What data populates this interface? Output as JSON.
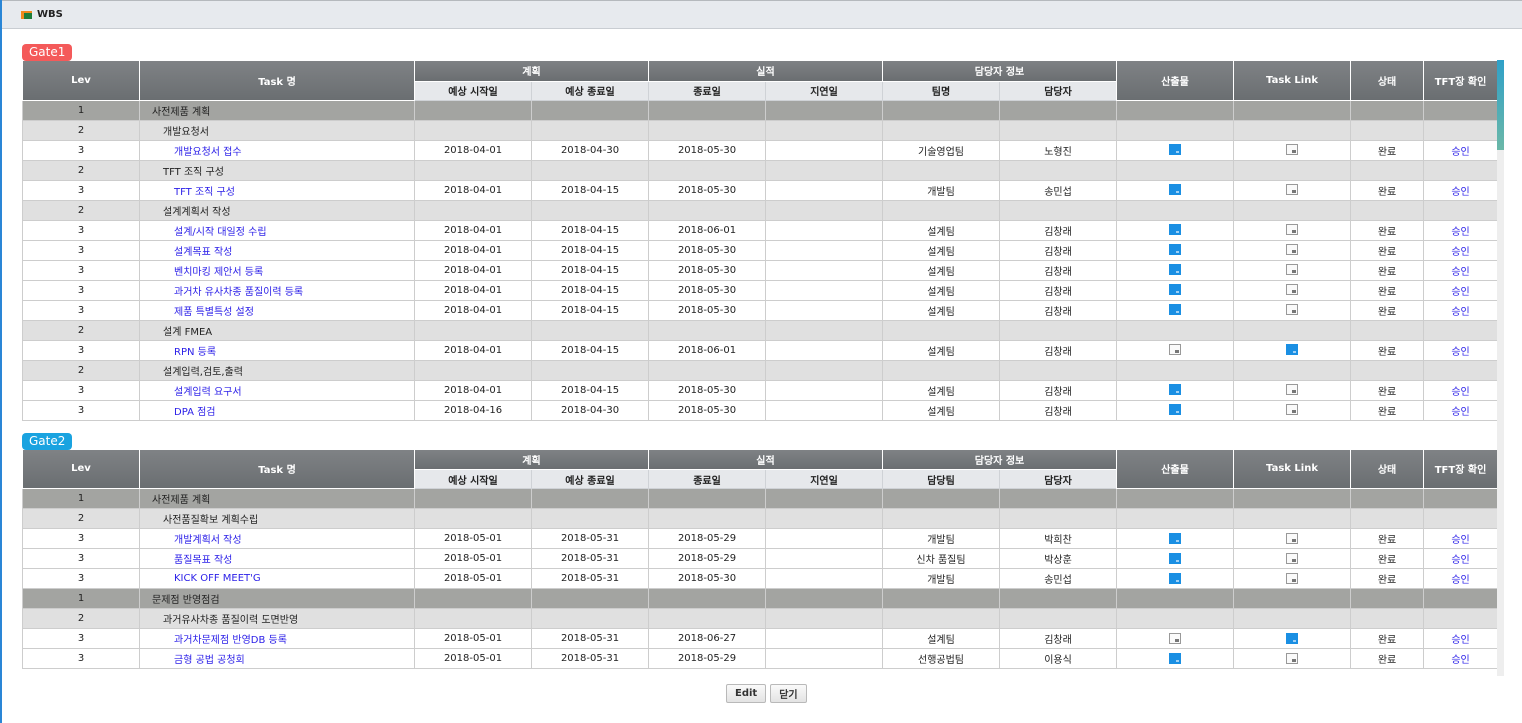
{
  "window": {
    "title": "WBS"
  },
  "headers": {
    "lev": "Lev",
    "task": "Task 명",
    "plan": "계획",
    "actual": "실적",
    "owner": "담당자 정보",
    "output": "산출물",
    "task_link": "Task Link",
    "status": "상태",
    "tft": "TFT장 확인",
    "plan_start": "예상 시작일",
    "plan_end": "예상 종료일",
    "end": "종료일",
    "delay": "지연일",
    "owner_person": "담당자"
  },
  "colors": {
    "gate1": "#f45a5a",
    "gate2": "#1aa3e0",
    "folder_filled": "#1a8fe3",
    "link": "#2a1ee8"
  },
  "gates": [
    {
      "label": "Gate1",
      "team_header": "팀명",
      "rows": [
        {
          "lev": "1",
          "task": "사전제품 계획"
        },
        {
          "lev": "2",
          "task": "개발요청서"
        },
        {
          "lev": "3",
          "task": "개발요청서 접수",
          "ps": "2018-04-01",
          "pe": "2018-04-30",
          "end": "2018-05-30",
          "delay": "",
          "team": "기술영업팀",
          "person": "노형진",
          "output": "filled",
          "link": "empty",
          "status": "완료",
          "tft": "승인"
        },
        {
          "lev": "2",
          "task": "TFT 조직 구성"
        },
        {
          "lev": "3",
          "task": "TFT 조직 구성",
          "ps": "2018-04-01",
          "pe": "2018-04-15",
          "end": "2018-05-30",
          "delay": "",
          "team": "개발팀",
          "person": "송민섭",
          "output": "filled",
          "link": "empty",
          "status": "완료",
          "tft": "승인"
        },
        {
          "lev": "2",
          "task": "설계계획서 작성"
        },
        {
          "lev": "3",
          "task": "설계/시작 대일정 수립",
          "ps": "2018-04-01",
          "pe": "2018-04-15",
          "end": "2018-06-01",
          "delay": "",
          "team": "설계팀",
          "person": "김창래",
          "output": "filled",
          "link": "empty",
          "status": "완료",
          "tft": "승인"
        },
        {
          "lev": "3",
          "task": "설계목표 작성",
          "ps": "2018-04-01",
          "pe": "2018-04-15",
          "end": "2018-05-30",
          "delay": "",
          "team": "설계팀",
          "person": "김창래",
          "output": "filled",
          "link": "empty",
          "status": "완료",
          "tft": "승인"
        },
        {
          "lev": "3",
          "task": "벤치마킹 제안서 등록",
          "ps": "2018-04-01",
          "pe": "2018-04-15",
          "end": "2018-05-30",
          "delay": "",
          "team": "설계팀",
          "person": "김창래",
          "output": "filled",
          "link": "empty",
          "status": "완료",
          "tft": "승인"
        },
        {
          "lev": "3",
          "task": "과거차 유사차종 품질이력 등록",
          "ps": "2018-04-01",
          "pe": "2018-04-15",
          "end": "2018-05-30",
          "delay": "",
          "team": "설계팀",
          "person": "김창래",
          "output": "filled",
          "link": "empty",
          "status": "완료",
          "tft": "승인"
        },
        {
          "lev": "3",
          "task": "제품 특별특성 설정",
          "ps": "2018-04-01",
          "pe": "2018-04-15",
          "end": "2018-05-30",
          "delay": "",
          "team": "설계팀",
          "person": "김창래",
          "output": "filled",
          "link": "empty",
          "status": "완료",
          "tft": "승인"
        },
        {
          "lev": "2",
          "task": "설계 FMEA"
        },
        {
          "lev": "3",
          "task": "RPN 등록",
          "ps": "2018-04-01",
          "pe": "2018-04-15",
          "end": "2018-06-01",
          "delay": "",
          "team": "설계팀",
          "person": "김창래",
          "output": "empty",
          "link": "filled",
          "status": "완료",
          "tft": "승인"
        },
        {
          "lev": "2",
          "task": "설계입력,검토,출력"
        },
        {
          "lev": "3",
          "task": "설계입력 요구서",
          "ps": "2018-04-01",
          "pe": "2018-04-15",
          "end": "2018-05-30",
          "delay": "",
          "team": "설계팀",
          "person": "김창래",
          "output": "filled",
          "link": "empty",
          "status": "완료",
          "tft": "승인"
        },
        {
          "lev": "3",
          "task": "DPA 점검",
          "ps": "2018-04-16",
          "pe": "2018-04-30",
          "end": "2018-05-30",
          "delay": "",
          "team": "설계팀",
          "person": "김창래",
          "output": "filled",
          "link": "empty",
          "status": "완료",
          "tft": "승인"
        }
      ]
    },
    {
      "label": "Gate2",
      "team_header": "담당팀",
      "rows": [
        {
          "lev": "1",
          "task": "사전제품 계획"
        },
        {
          "lev": "2",
          "task": "사전품질확보 계획수립"
        },
        {
          "lev": "3",
          "task": "개발계획서 작성",
          "ps": "2018-05-01",
          "pe": "2018-05-31",
          "end": "2018-05-29",
          "delay": "",
          "team": "개발팀",
          "person": "박희찬",
          "output": "filled",
          "link": "empty",
          "status": "완료",
          "tft": "승인"
        },
        {
          "lev": "3",
          "task": "품질목표 작성",
          "ps": "2018-05-01",
          "pe": "2018-05-31",
          "end": "2018-05-29",
          "delay": "",
          "team": "신차 품질팀",
          "person": "박상훈",
          "output": "filled",
          "link": "empty",
          "status": "완료",
          "tft": "승인"
        },
        {
          "lev": "3",
          "task": "KICK OFF MEET'G",
          "ps": "2018-05-01",
          "pe": "2018-05-31",
          "end": "2018-05-30",
          "delay": "",
          "team": "개발팀",
          "person": "송민섭",
          "output": "filled",
          "link": "empty",
          "status": "완료",
          "tft": "승인"
        },
        {
          "lev": "1",
          "task": "문제점 반영점검"
        },
        {
          "lev": "2",
          "task": "과거유사차종 품질이력 도면반영"
        },
        {
          "lev": "3",
          "task": "과거차문제점 반영DB 등록",
          "ps": "2018-05-01",
          "pe": "2018-05-31",
          "end": "2018-06-27",
          "delay": "",
          "team": "설계팀",
          "person": "김창래",
          "output": "empty",
          "link": "filled",
          "status": "완료",
          "tft": "승인"
        },
        {
          "lev": "3",
          "task": "금형 공법 공청회",
          "ps": "2018-05-01",
          "pe": "2018-05-31",
          "end": "2018-05-29",
          "delay": "",
          "team": "선행공법팀",
          "person": "이용식",
          "output": "filled",
          "link": "empty",
          "status": "완료",
          "tft": "승인"
        }
      ]
    }
  ],
  "buttons": {
    "edit": "Edit",
    "close": "닫기"
  }
}
